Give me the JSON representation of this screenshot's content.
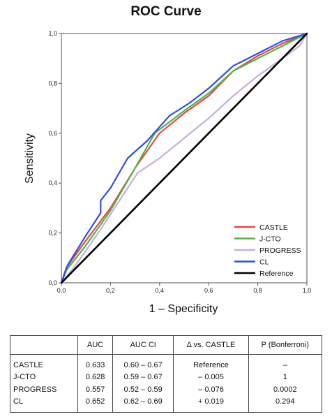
{
  "chart_data": {
    "type": "line",
    "title": "ROC Curve",
    "xlabel": "1 – Specificity",
    "ylabel": "Sensitivity",
    "xlim": [
      0,
      1
    ],
    "ylim": [
      0,
      1
    ],
    "x_ticks": [
      "0,0",
      "0,2",
      "0,4",
      "0,6",
      "0,8",
      "1,0"
    ],
    "y_ticks": [
      "0,0",
      "0,2",
      "0,4",
      "0,6",
      "0,8",
      "1,0"
    ],
    "grid": false,
    "legend_position": "bottom-right",
    "series": [
      {
        "name": "CASTLE",
        "color": "#e8474d",
        "points": [
          [
            0,
            0
          ],
          [
            0.02,
            0.06
          ],
          [
            0.1,
            0.17
          ],
          [
            0.2,
            0.3
          ],
          [
            0.3,
            0.46
          ],
          [
            0.4,
            0.6
          ],
          [
            0.5,
            0.68
          ],
          [
            0.6,
            0.75
          ],
          [
            0.7,
            0.85
          ],
          [
            0.8,
            0.91
          ],
          [
            0.9,
            0.96
          ],
          [
            1,
            1
          ]
        ]
      },
      {
        "name": "J-CTO",
        "color": "#4cb748",
        "points": [
          [
            0,
            0
          ],
          [
            0.02,
            0.05
          ],
          [
            0.1,
            0.15
          ],
          [
            0.2,
            0.29
          ],
          [
            0.3,
            0.46
          ],
          [
            0.38,
            0.6
          ],
          [
            0.5,
            0.69
          ],
          [
            0.6,
            0.76
          ],
          [
            0.7,
            0.85
          ],
          [
            0.8,
            0.9
          ],
          [
            0.9,
            0.95
          ],
          [
            1,
            1
          ]
        ]
      },
      {
        "name": "PROGRESS",
        "color": "#c5aedb",
        "points": [
          [
            0,
            0
          ],
          [
            0.05,
            0.06
          ],
          [
            0.15,
            0.2
          ],
          [
            0.31,
            0.44
          ],
          [
            0.4,
            0.5
          ],
          [
            0.5,
            0.58
          ],
          [
            0.6,
            0.66
          ],
          [
            0.7,
            0.75
          ],
          [
            0.8,
            0.83
          ],
          [
            0.9,
            0.9
          ],
          [
            0.97,
            0.95
          ],
          [
            1,
            1
          ]
        ]
      },
      {
        "name": "CL",
        "color": "#2f4fe0",
        "points": [
          [
            0,
            0
          ],
          [
            0.025,
            0.07
          ],
          [
            0.1,
            0.19
          ],
          [
            0.16,
            0.28
          ],
          [
            0.16,
            0.33
          ],
          [
            0.2,
            0.38
          ],
          [
            0.27,
            0.5
          ],
          [
            0.35,
            0.57
          ],
          [
            0.44,
            0.67
          ],
          [
            0.52,
            0.72
          ],
          [
            0.6,
            0.78
          ],
          [
            0.7,
            0.87
          ],
          [
            0.8,
            0.92
          ],
          [
            0.9,
            0.97
          ],
          [
            1,
            1
          ]
        ]
      },
      {
        "name": "Reference",
        "color": "#000000",
        "points": [
          [
            0,
            0
          ],
          [
            1,
            1
          ]
        ]
      }
    ]
  },
  "table": {
    "headers": [
      "",
      "AUC",
      "AUC CI",
      "Δ vs. CASTLE",
      "P (Bonferroni)"
    ],
    "rows": [
      [
        "CASTLE",
        "0.633",
        "0.60 – 0.67",
        "Reference",
        "–"
      ],
      [
        "J-CTO",
        "0.628",
        "0.59 – 0.67",
        "– 0.005",
        "1"
      ],
      [
        "PROGRESS",
        "0.557",
        "0.52 – 0.59",
        "– 0.076",
        "0.0002"
      ],
      [
        "CL",
        "0.652",
        "0.62 – 0.69",
        "+ 0.019",
        "0.294"
      ]
    ]
  }
}
